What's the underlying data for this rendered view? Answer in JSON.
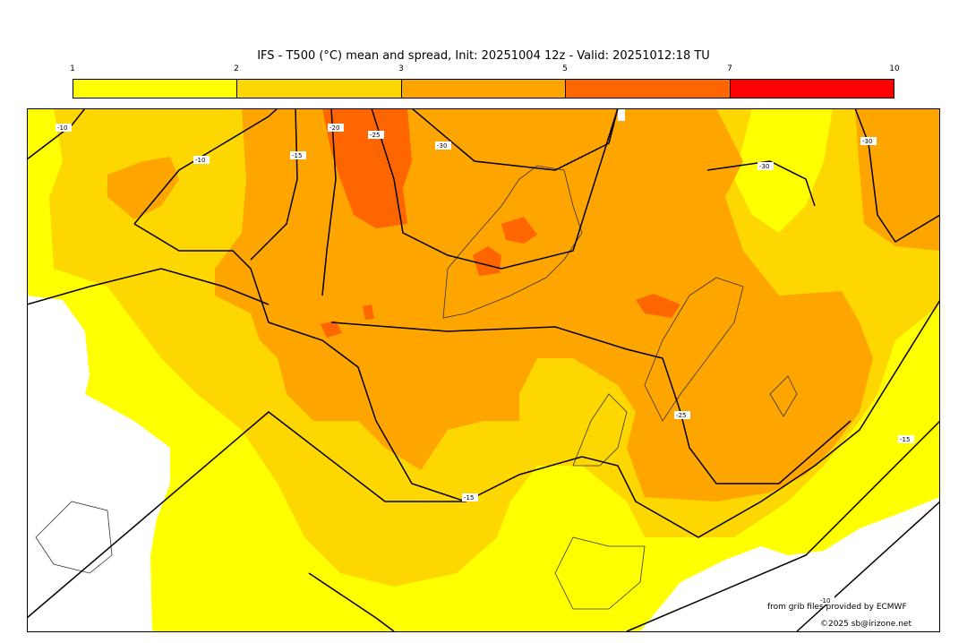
{
  "title": "IFS - T500 (°C) mean and spread, Init: 20251004 12z - Valid: 20251012:18 TU",
  "colorbar": {
    "ticks": [
      "1",
      "2",
      "3",
      "5",
      "7",
      "10"
    ],
    "colors": [
      "#ffff00",
      "#ffd700",
      "#ffa500",
      "#ff6600",
      "#ff0000"
    ]
  },
  "contour_labels": [
    "-10",
    "-10",
    "-15",
    "-20",
    "-25",
    "-30",
    "-30",
    "-30",
    "-25",
    "-15",
    "-15",
    "-10"
  ],
  "credits": {
    "source": "from grib files provided by ECMWF",
    "copyright": "©2025 sb@irizone.net"
  }
}
